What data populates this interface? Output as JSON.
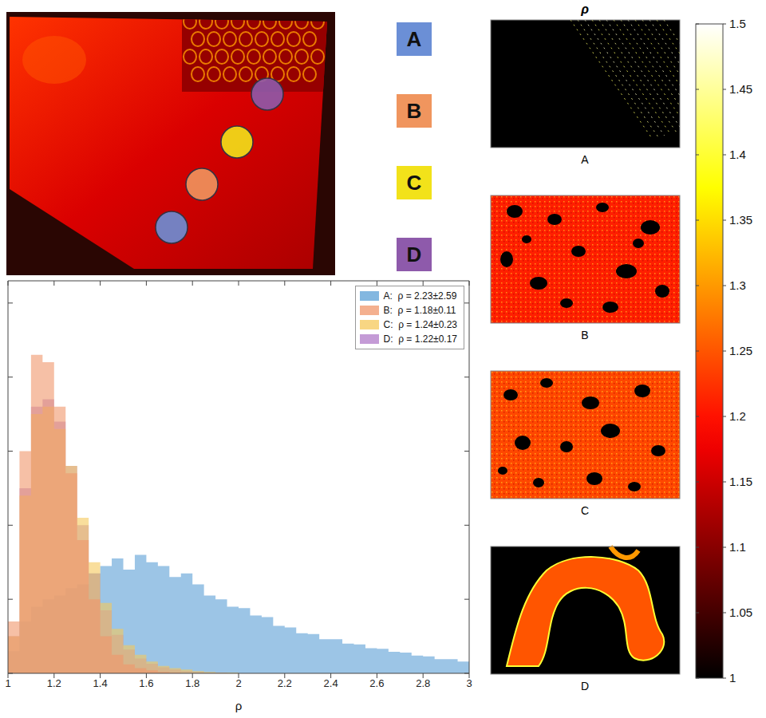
{
  "regions": [
    {
      "label": "A",
      "color": "#6b8fd6"
    },
    {
      "label": "B",
      "color": "#f0955e"
    },
    {
      "label": "C",
      "color": "#f2e21a"
    },
    {
      "label": "D",
      "color": "#8e5aab"
    }
  ],
  "maps": {
    "title": "ρ",
    "panels": [
      "A",
      "B",
      "C",
      "D"
    ],
    "colorbar": {
      "range": [
        1,
        1.5
      ],
      "ticks": [
        1,
        1.05,
        1.1,
        1.15,
        1.2,
        1.25,
        1.3,
        1.35,
        1.4,
        1.45,
        1.5
      ]
    }
  },
  "chart_data": {
    "type": "histogram",
    "x_label": "ρ",
    "xlim": [
      1,
      3
    ],
    "xticks": [
      1,
      1.2,
      1.4,
      1.6,
      1.8,
      2,
      2.2,
      2.4,
      2.6,
      2.8,
      3
    ],
    "ylim": [
      0,
      5.3
    ],
    "yticks": [
      0,
      1,
      2,
      3,
      4,
      5
    ],
    "tick_labels": "x",
    "legend": "upper right",
    "bins": [
      1,
      1.05,
      1.1,
      1.15,
      1.2,
      1.25,
      1.3,
      1.35,
      1.4,
      1.45,
      1.5,
      1.55,
      1.6,
      1.65,
      1.7,
      1.75,
      1.8,
      1.85,
      1.9,
      1.95,
      2,
      2.05,
      2.1,
      2.15,
      2.2,
      2.25,
      2.3,
      2.35,
      2.4,
      2.45,
      2.5,
      2.55,
      2.6,
      2.65,
      2.7,
      2.75,
      2.8,
      2.85,
      2.9,
      2.95,
      3
    ],
    "series": [
      {
        "name": "A:  ρ = 2.23±2.59",
        "color": "#5a9fd6",
        "values": [
          0.3,
          0.7,
          0.9,
          1.0,
          1.05,
          1.15,
          1.2,
          1.35,
          1.45,
          1.55,
          1.4,
          1.6,
          1.5,
          1.45,
          1.3,
          1.35,
          1.2,
          1.05,
          1.0,
          0.9,
          0.88,
          0.78,
          0.76,
          0.64,
          0.62,
          0.54,
          0.53,
          0.46,
          0.46,
          0.4,
          0.39,
          0.34,
          0.33,
          0.29,
          0.28,
          0.24,
          0.23,
          0.19,
          0.19,
          0.16
        ]
      },
      {
        "name": "B:  ρ = 1.18±0.11",
        "color": "#f0966a",
        "values": [
          0.7,
          3.0,
          4.3,
          4.2,
          3.6,
          2.7,
          1.8,
          1.0,
          0.5,
          0.25,
          0.12,
          0.07,
          0.04,
          0.02,
          0.01,
          0,
          0,
          0,
          0,
          0,
          0,
          0,
          0,
          0,
          0,
          0,
          0,
          0,
          0,
          0,
          0,
          0,
          0,
          0,
          0,
          0,
          0,
          0,
          0,
          0
        ]
      },
      {
        "name": "C:  ρ = 1.24±0.23",
        "color": "#f5c85a",
        "values": [
          0.5,
          2.4,
          3.5,
          3.6,
          3.3,
          2.8,
          2.1,
          1.5,
          0.95,
          0.6,
          0.38,
          0.25,
          0.16,
          0.1,
          0.07,
          0.05,
          0.03,
          0.02,
          0.01,
          0.01,
          0,
          0,
          0,
          0,
          0,
          0,
          0,
          0,
          0,
          0,
          0,
          0,
          0,
          0,
          0,
          0,
          0,
          0,
          0,
          0
        ]
      },
      {
        "name": "D:  ρ = 1.22±0.17",
        "color": "#b07ac8",
        "values": [
          0.5,
          2.5,
          3.6,
          3.7,
          3.4,
          2.8,
          2.0,
          1.35,
          0.85,
          0.52,
          0.32,
          0.2,
          0.13,
          0.08,
          0.05,
          0.03,
          0.02,
          0.01,
          0.01,
          0,
          0,
          0,
          0,
          0,
          0,
          0,
          0,
          0,
          0,
          0,
          0,
          0,
          0,
          0,
          0,
          0,
          0,
          0,
          0,
          0
        ]
      }
    ]
  }
}
